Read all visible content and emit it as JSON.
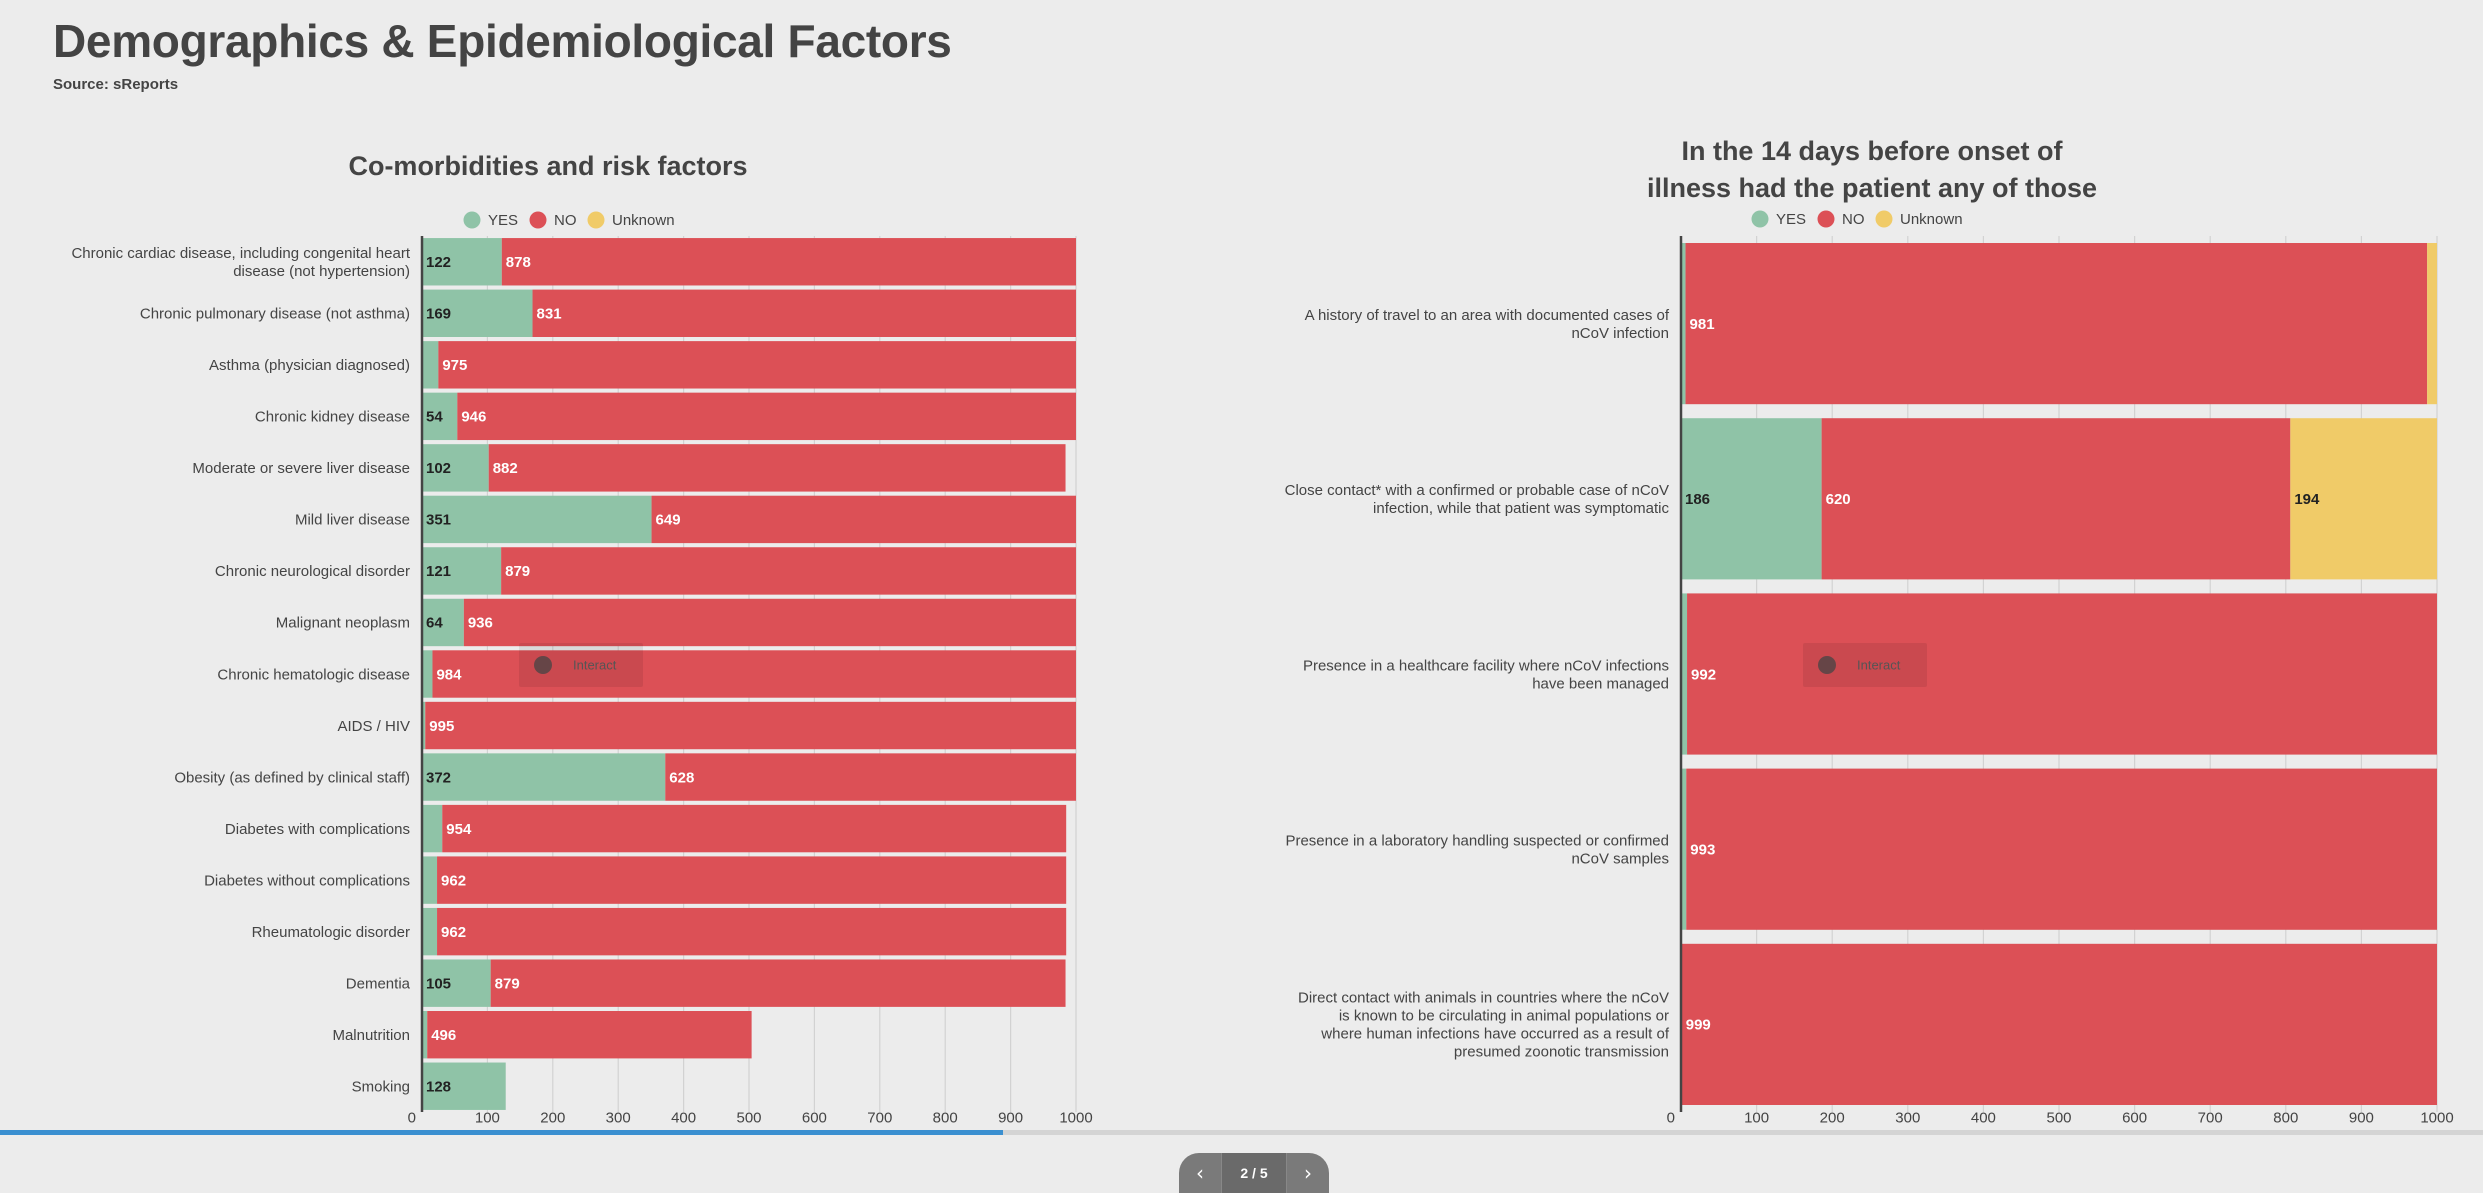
{
  "page": {
    "title": "Demographics & Epidemiological Factors",
    "source": "Source: sReports"
  },
  "colors": {
    "yes": "#8fc3a7",
    "no": "#dc5056",
    "unknown": "#f0cb68"
  },
  "legend": {
    "yes": "YES",
    "no": "NO",
    "unknown": "Unknown"
  },
  "interact_label": "Interact",
  "pager": {
    "label": "2 / 5",
    "prev_icon": "chevron-left-icon",
    "next_icon": "chevron-right-icon"
  },
  "progress": {
    "fraction": 0.404
  },
  "chart_data": [
    {
      "type": "bar",
      "stacked": true,
      "orientation": "horizontal",
      "title": "Co-morbidities and risk factors",
      "xlim": [
        0,
        1000
      ],
      "xticks": [
        0,
        100,
        200,
        300,
        400,
        500,
        600,
        700,
        800,
        900,
        1000
      ],
      "grid": true,
      "legend_position": "top",
      "categories": [
        "Chronic cardiac disease, including congenital heart disease (not hypertension)",
        "Chronic pulmonary disease (not asthma)",
        "Asthma (physician diagnosed)",
        "Chronic kidney disease",
        "Moderate or severe liver disease",
        "Mild liver disease",
        "Chronic neurological disorder",
        "Malignant neoplasm",
        "Chronic hematologic disease",
        "AIDS / HIV",
        "Obesity (as defined by clinical staff)",
        "Diabetes with complications",
        "Diabetes without complications",
        "Rheumatologic disorder",
        "Dementia",
        "Malnutrition",
        "Smoking"
      ],
      "series": [
        {
          "name": "YES",
          "values": [
            122,
            169,
            25,
            54,
            102,
            351,
            121,
            64,
            16,
            5,
            372,
            31,
            23,
            23,
            105,
            8,
            128
          ]
        },
        {
          "name": "NO",
          "values": [
            878,
            831,
            975,
            946,
            882,
            649,
            879,
            936,
            984,
            995,
            628,
            954,
            962,
            962,
            879,
            496,
            0
          ]
        },
        {
          "name": "Unknown",
          "values": [
            0,
            0,
            0,
            0,
            0,
            0,
            0,
            0,
            0,
            0,
            0,
            0,
            0,
            0,
            0,
            0,
            0
          ]
        }
      ],
      "data_labels": {
        "YES": [
          "122",
          "169",
          "",
          "54",
          "102",
          "351",
          "121",
          "64",
          "",
          "",
          "372",
          "",
          "",
          "",
          "105",
          "",
          "128"
        ],
        "NO": [
          "878",
          "831",
          "975",
          "946",
          "882",
          "649",
          "879",
          "936",
          "984",
          "995",
          "628",
          "954",
          "962",
          "962",
          "879",
          "496",
          ""
        ],
        "Unknown": [
          "",
          "",
          "",
          "",
          "",
          "",
          "",
          "",
          "",
          "",
          "",
          "",
          "",
          "",
          "",
          "",
          ""
        ]
      }
    },
    {
      "type": "bar",
      "stacked": true,
      "orientation": "horizontal",
      "title": "In the 14 days before onset of illness had the patient any of those",
      "xlim": [
        0,
        1000
      ],
      "xticks": [
        0,
        100,
        200,
        300,
        400,
        500,
        600,
        700,
        800,
        900,
        1000
      ],
      "grid": true,
      "legend_position": "top",
      "categories": [
        "A history of travel to an area with documented cases of nCoV infection",
        "Close contact* with a confirmed or probable case of nCoV infection, while that patient was symptomatic",
        "Presence in a healthcare facility where nCoV infections have been managed",
        "Presence in a laboratory handling suspected or confirmed nCoV samples",
        "Direct contact with animals in countries where the nCoV is known to be circulating in animal populations or where human infections have occurred as a result of presumed zoonotic transmission"
      ],
      "series": [
        {
          "name": "YES",
          "values": [
            6,
            186,
            8,
            7,
            1
          ]
        },
        {
          "name": "NO",
          "values": [
            981,
            620,
            992,
            993,
            999
          ]
        },
        {
          "name": "Unknown",
          "values": [
            13,
            194,
            0,
            0,
            0
          ]
        }
      ],
      "data_labels": {
        "YES": [
          "",
          "186",
          "",
          "",
          ""
        ],
        "NO": [
          "981",
          "620",
          "992",
          "993",
          "999"
        ],
        "Unknown": [
          "",
          "194",
          "",
          "",
          ""
        ]
      }
    }
  ]
}
